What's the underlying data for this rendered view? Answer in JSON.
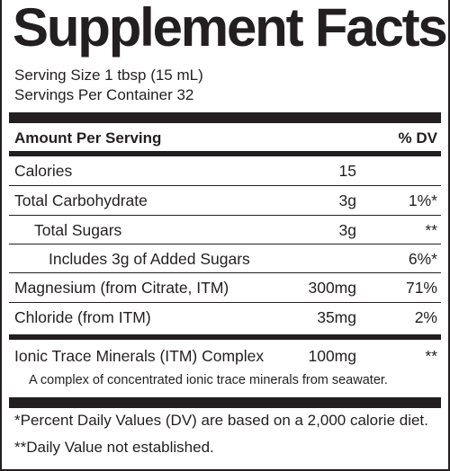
{
  "title": "Supplement Facts",
  "serving_size": "Serving Size 1 tbsp (15 mL)",
  "servings_per_container": "Servings Per Container 32",
  "header": {
    "amount_label": "Amount Per Serving",
    "dv_label": "% DV"
  },
  "rows": [
    {
      "name": "Calories",
      "amount": "15",
      "dv": ""
    },
    {
      "name": "Total Carbohydrate",
      "amount": "3g",
      "dv": "1%*"
    },
    {
      "name": "Total Sugars",
      "amount": "3g",
      "dv": "**"
    },
    {
      "name": "Includes 3g of Added Sugars",
      "amount": "",
      "dv": "6%*"
    },
    {
      "name": "Magnesium (from Citrate, ITM)",
      "amount": "300mg",
      "dv": "71%"
    },
    {
      "name": "Chloride (from ITM)",
      "amount": "35mg",
      "dv": "2%"
    }
  ],
  "complex": {
    "name": "Ionic Trace Minerals (ITM) Complex",
    "amount": "100mg",
    "dv": "**",
    "description": "A complex of concentrated ionic trace minerals from seawater."
  },
  "footnotes": [
    "*Percent Daily Values (DV) are based on a 2,000 calorie diet.",
    "**Daily Value not established."
  ]
}
